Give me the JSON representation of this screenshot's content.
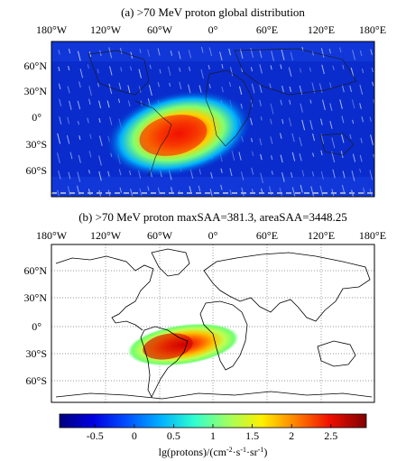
{
  "chart_data": [
    {
      "type": "heatmap",
      "panel": "a",
      "title": "(a) >70 MeV proton global distribution",
      "x_ticks": [
        "180°W",
        "120°W",
        "60°W",
        "0°",
        "60°E",
        "120°E",
        "180°E"
      ],
      "y_ticks": [
        "60°N",
        "30°N",
        "0°",
        "30°S",
        "60°S"
      ],
      "xlim": [
        -180,
        180
      ],
      "ylim": [
        -90,
        90
      ],
      "grid": false,
      "background_value": -0.9,
      "anomaly": {
        "name": "SAA",
        "center_lon": -50,
        "center_lat": -25,
        "peak_value": 2.6
      }
    },
    {
      "type": "heatmap",
      "panel": "b",
      "title": "(b) >70 MeV proton maxSAA=381.3, areaSAA=3448.25",
      "x_ticks": [
        "180°W",
        "120°W",
        "60°W",
        "0°",
        "60°E",
        "120°E",
        "180°E"
      ],
      "y_ticks": [
        "60°N",
        "30°N",
        "0°",
        "30°S",
        "60°S"
      ],
      "xlim": [
        -180,
        180
      ],
      "ylim": [
        -90,
        90
      ],
      "grid": true,
      "maxSAA": 381.3,
      "areaSAA": 3448.25,
      "anomaly": {
        "name": "SAA",
        "center_lon": -50,
        "center_lat": -25,
        "peak_value": 2.6
      }
    }
  ],
  "colorbar": {
    "label_main": "lg(protons)/(cm",
    "label_sup1": "-2",
    "label_mid1": "·s",
    "label_sup2": "-1",
    "label_mid2": "·sr",
    "label_sup3": "-1",
    "label_end": ")",
    "ticks": [
      "-0.5",
      "0",
      "0.5",
      "1",
      "1.5",
      "2",
      "2.5"
    ],
    "tick_values": [
      -0.5,
      0,
      0.5,
      1,
      1.5,
      2,
      2.5
    ],
    "range": [
      -0.95,
      2.95
    ],
    "colors": [
      "#00007f",
      "#0000e0",
      "#0050ff",
      "#00b0ff",
      "#30ffd0",
      "#a0ff60",
      "#fff000",
      "#ff8000",
      "#f01000",
      "#800000"
    ]
  }
}
